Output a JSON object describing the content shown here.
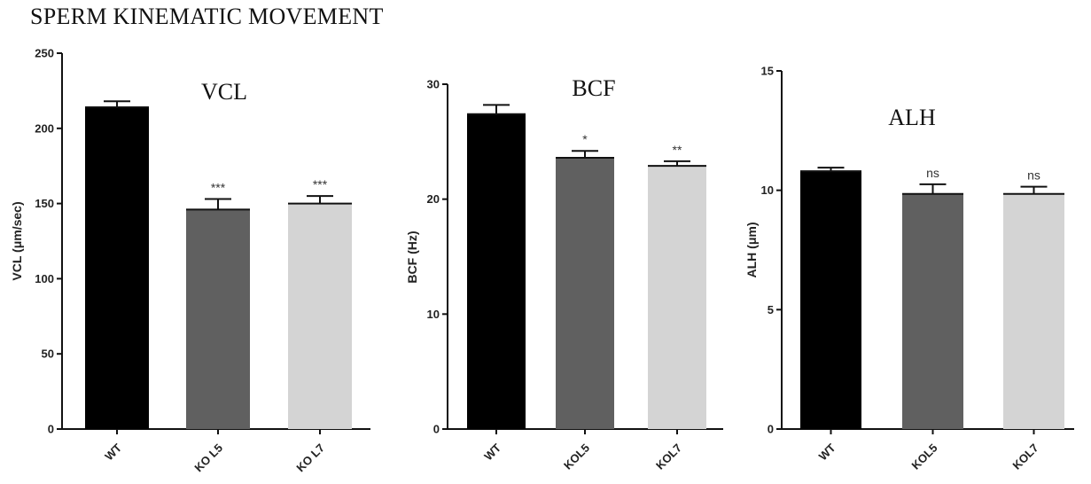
{
  "figure_title": "SPERM KINEMATIC MOVEMENT",
  "chart_data": [
    {
      "type": "bar",
      "title": "VCL",
      "ylabel": "VCL (μm/sec)",
      "xlabel": "",
      "categories": [
        "WT",
        "KO L5",
        "KO L7"
      ],
      "values": [
        214,
        146,
        150
      ],
      "errors": [
        4,
        7,
        5
      ],
      "significance": [
        "",
        "***",
        "***"
      ],
      "colors": [
        "#000000",
        "#606060",
        "#d4d4d4"
      ],
      "ylim": [
        0,
        250
      ],
      "yticks": [
        0,
        50,
        100,
        150,
        200,
        250
      ],
      "grid": false
    },
    {
      "type": "bar",
      "title": "BCF",
      "ylabel": "BCF (Hz)",
      "xlabel": "",
      "categories": [
        "WT",
        "KOL5",
        "KOL7"
      ],
      "values": [
        27.4,
        23.6,
        22.9
      ],
      "errors": [
        0.8,
        0.6,
        0.4
      ],
      "significance": [
        "",
        "*",
        "**"
      ],
      "colors": [
        "#000000",
        "#606060",
        "#d4d4d4"
      ],
      "ylim": [
        0,
        30
      ],
      "yticks": [
        0,
        10,
        20,
        30
      ],
      "grid": false
    },
    {
      "type": "bar",
      "title": "ALH",
      "ylabel": "ALH (μm)",
      "xlabel": "",
      "categories": [
        "WT",
        "KOL5",
        "KOL7"
      ],
      "values": [
        10.8,
        9.85,
        9.85
      ],
      "errors": [
        0.15,
        0.4,
        0.3
      ],
      "significance": [
        "",
        "ns",
        "ns"
      ],
      "colors": [
        "#000000",
        "#606060",
        "#d4d4d4"
      ],
      "ylim": [
        0,
        15
      ],
      "yticks": [
        0,
        5,
        10,
        15
      ],
      "grid": false
    }
  ]
}
